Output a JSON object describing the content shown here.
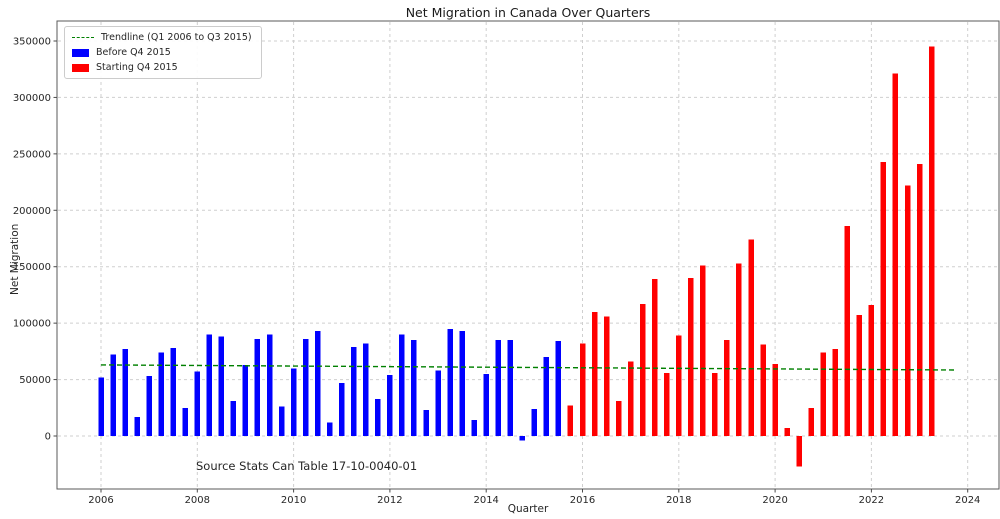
{
  "chart": {
    "title": "Net Migration in Canada Over Quarters",
    "xlabel": "Quarter",
    "ylabel": "Net Migration",
    "source_note": "Source Stats Can Table 17-10-0040-01",
    "legend": [
      {
        "label": "Trendline (Q1 2006 to Q3 2015)",
        "swatch": "green-dashed-line",
        "color": "#008000"
      },
      {
        "label": "Before Q4 2015",
        "swatch": "blue-patch",
        "color": "#0000ff"
      },
      {
        "label": "Starting Q4 2015",
        "swatch": "red-patch",
        "color": "#ff0000"
      }
    ]
  },
  "chart_data": {
    "type": "bar",
    "title": "Net Migration in Canada Over Quarters",
    "xlabel": "Quarter",
    "ylabel": "Net Migration",
    "grid": true,
    "legend_position": "upper left",
    "x_ticks": [
      2006,
      2008,
      2010,
      2012,
      2014,
      2016,
      2018,
      2020,
      2022,
      2024
    ],
    "y_ticks": [
      0,
      50000,
      100000,
      150000,
      200000,
      250000,
      300000,
      350000
    ],
    "xlim": [
      2005.1,
      2024.65
    ],
    "ylim": [
      -47000,
      368000
    ],
    "series": [
      {
        "name": "Before Q4 2015",
        "color": "#0000ff",
        "x_start": 2006.0,
        "quarters": [
          "2006 Q1",
          "2006 Q2",
          "2006 Q3",
          "2006 Q4",
          "2007 Q1",
          "2007 Q2",
          "2007 Q3",
          "2007 Q4",
          "2008 Q1",
          "2008 Q2",
          "2008 Q3",
          "2008 Q4",
          "2009 Q1",
          "2009 Q2",
          "2009 Q3",
          "2009 Q4",
          "2010 Q1",
          "2010 Q2",
          "2010 Q3",
          "2010 Q4",
          "2011 Q1",
          "2011 Q2",
          "2011 Q3",
          "2011 Q4",
          "2012 Q1",
          "2012 Q2",
          "2012 Q3",
          "2012 Q4",
          "2013 Q1",
          "2013 Q2",
          "2013 Q3",
          "2013 Q4",
          "2014 Q1",
          "2014 Q2",
          "2014 Q3",
          "2014 Q4",
          "2015 Q1",
          "2015 Q2",
          "2015 Q3"
        ],
        "values": [
          52000,
          72000,
          77000,
          17000,
          53000,
          74000,
          78000,
          25000,
          57000,
          90000,
          88000,
          31000,
          63000,
          86000,
          90000,
          26000,
          60000,
          86000,
          93000,
          12000,
          47000,
          79000,
          82000,
          33000,
          54000,
          90000,
          85000,
          23000,
          58000,
          95000,
          93000,
          14000,
          55000,
          85000,
          85000,
          -4000,
          24000,
          70000,
          84000
        ]
      },
      {
        "name": "Starting Q4 2015",
        "color": "#ff0000",
        "x_start": 2015.75,
        "quarters": [
          "2015 Q4",
          "2016 Q1",
          "2016 Q2",
          "2016 Q3",
          "2016 Q4",
          "2017 Q1",
          "2017 Q2",
          "2017 Q3",
          "2017 Q4",
          "2018 Q1",
          "2018 Q2",
          "2018 Q3",
          "2018 Q4",
          "2019 Q1",
          "2019 Q2",
          "2019 Q3",
          "2019 Q4",
          "2020 Q1",
          "2020 Q2",
          "2020 Q3",
          "2020 Q4",
          "2021 Q1",
          "2021 Q2",
          "2021 Q3",
          "2021 Q4",
          "2022 Q1",
          "2022 Q2",
          "2022 Q3",
          "2022 Q4",
          "2023 Q1",
          "2023 Q2"
        ],
        "values": [
          27000,
          82000,
          110000,
          106000,
          31000,
          66000,
          117000,
          139000,
          56000,
          89000,
          140000,
          151000,
          56000,
          85000,
          153000,
          174000,
          81000,
          64000,
          7000,
          -27000,
          25000,
          74000,
          77000,
          186000,
          107000,
          116000,
          243000,
          321000,
          222000,
          241000,
          345000
        ]
      }
    ],
    "trendline": {
      "name": "Trendline (Q1 2006 to Q3 2015)",
      "color": "#008000",
      "style": "dashed",
      "x_start": 2006.0,
      "x_end": 2023.75,
      "y_start": 63000,
      "y_end": 58500
    },
    "annotations": [
      {
        "text": "Source Stats Can Table 17-10-0040-01"
      }
    ]
  }
}
